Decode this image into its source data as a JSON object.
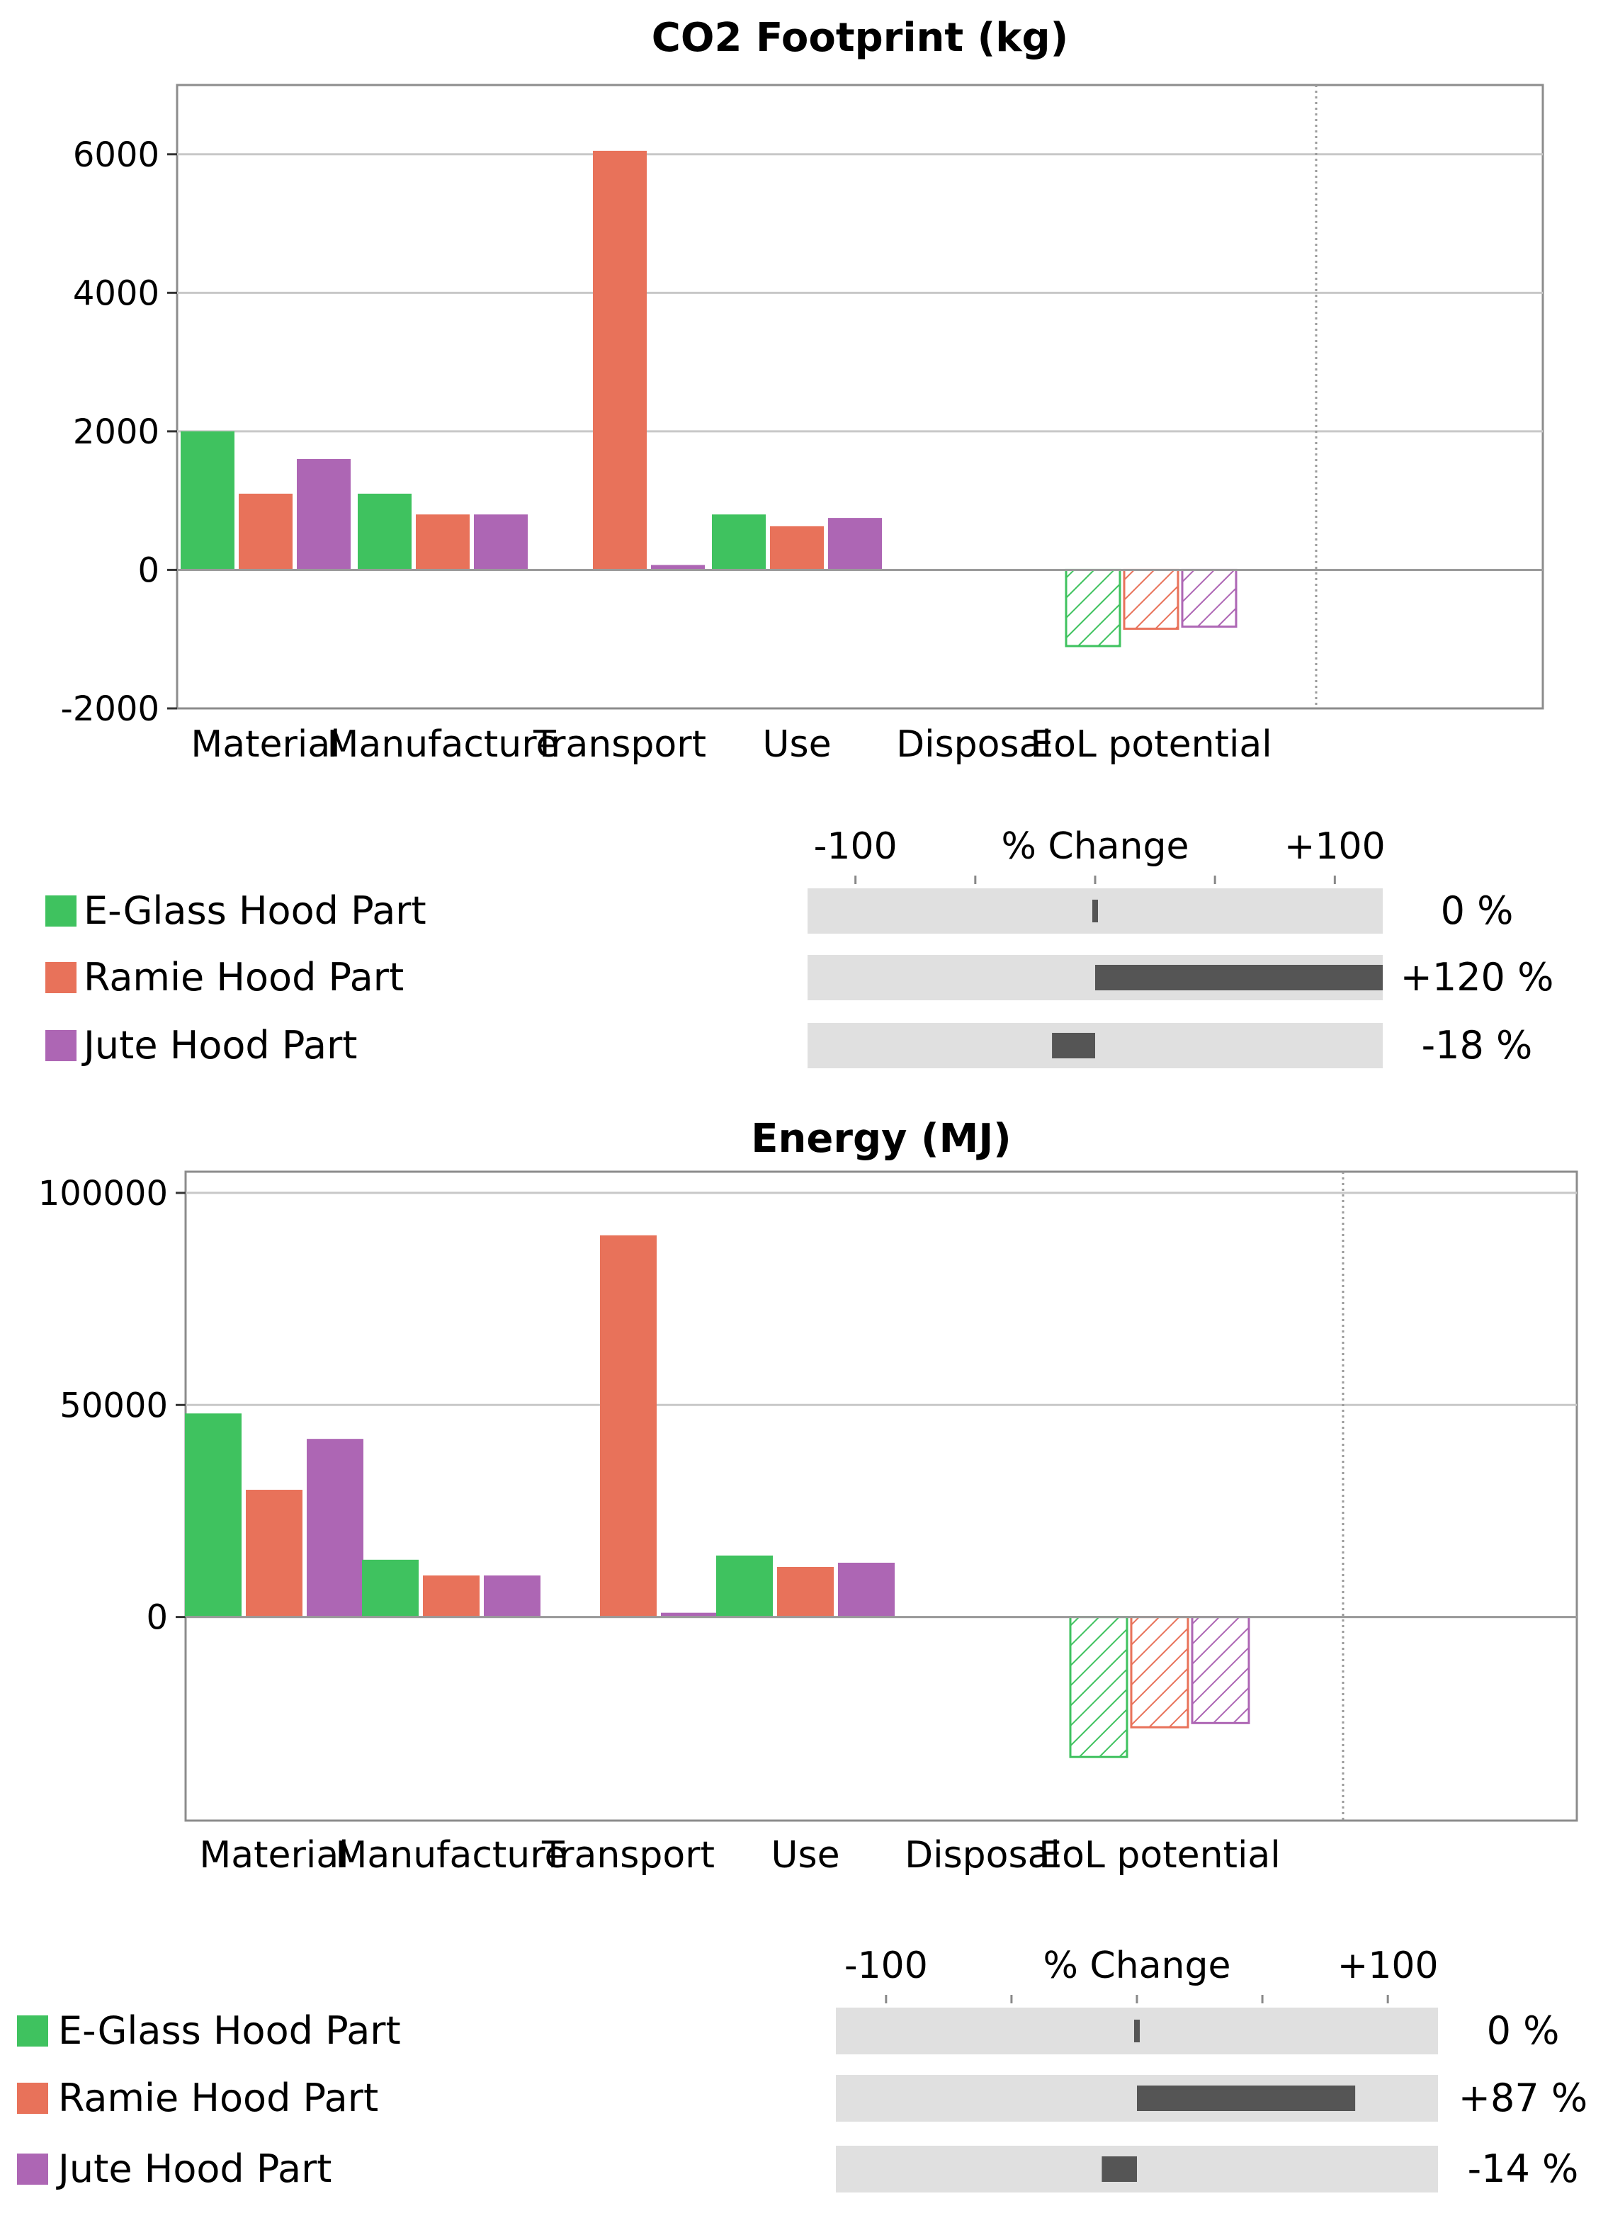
{
  "colors": {
    "eglass": "#3fc25f",
    "ramie": "#e8725a",
    "jute": "#ad66b4",
    "grid": "#c8c8c8",
    "change_track": "#e0e0e0",
    "change_bar": "#555555"
  },
  "legend_items": [
    {
      "label": "E-Glass Hood Part",
      "color": "#3fc25f"
    },
    {
      "label": "Ramie Hood Part",
      "color": "#e8725a"
    },
    {
      "label": "Jute Hood Part",
      "color": "#ad66b4"
    }
  ],
  "chart_data": [
    {
      "type": "bar",
      "title": "CO2 Footprint (kg)",
      "categories": [
        "Material",
        "Manufacture",
        "Transport",
        "Use",
        "Disposal",
        "EoL potential"
      ],
      "series": [
        {
          "name": "E-Glass Hood Part",
          "values": [
            2000,
            1100,
            0,
            800,
            0,
            -1100
          ]
        },
        {
          "name": "Ramie Hood Part",
          "values": [
            1100,
            800,
            6050,
            630,
            0,
            -850
          ]
        },
        {
          "name": "Jute Hood Part",
          "values": [
            1600,
            800,
            70,
            750,
            0,
            -820
          ]
        }
      ],
      "hatched_categories": [
        "EoL potential"
      ],
      "ylim": [
        -2000,
        7000
      ],
      "yticks": [
        6000,
        4000,
        2000,
        0,
        -2000
      ],
      "change_axis": {
        "label": "% Change",
        "ticks": [
          "-100",
          "+100"
        ]
      },
      "percent_change": [
        0,
        120,
        -18
      ],
      "percent_change_labels": [
        "0 %",
        "+120 %",
        "-18 %"
      ]
    },
    {
      "type": "bar",
      "title": "Energy (MJ)",
      "categories": [
        "Material",
        "Manufacture",
        "Transport",
        "Use",
        "Disposal",
        "EoL potential"
      ],
      "series": [
        {
          "name": "E-Glass Hood Part",
          "values": [
            48000,
            13500,
            0,
            14500,
            0,
            -33000
          ]
        },
        {
          "name": "Ramie Hood Part",
          "values": [
            30000,
            9800,
            90000,
            11800,
            0,
            -26000
          ]
        },
        {
          "name": "Jute Hood Part",
          "values": [
            42000,
            9800,
            1000,
            12800,
            0,
            -25000
          ]
        }
      ],
      "hatched_categories": [
        "EoL potential"
      ],
      "ylim": [
        -48000,
        105000
      ],
      "yticks": [
        100000,
        50000,
        0
      ],
      "change_axis": {
        "label": "% Change",
        "ticks": [
          "-100",
          "+100"
        ]
      },
      "percent_change": [
        0,
        87,
        -14
      ],
      "percent_change_labels": [
        "0 %",
        "+87 %",
        "-14 %"
      ]
    }
  ]
}
